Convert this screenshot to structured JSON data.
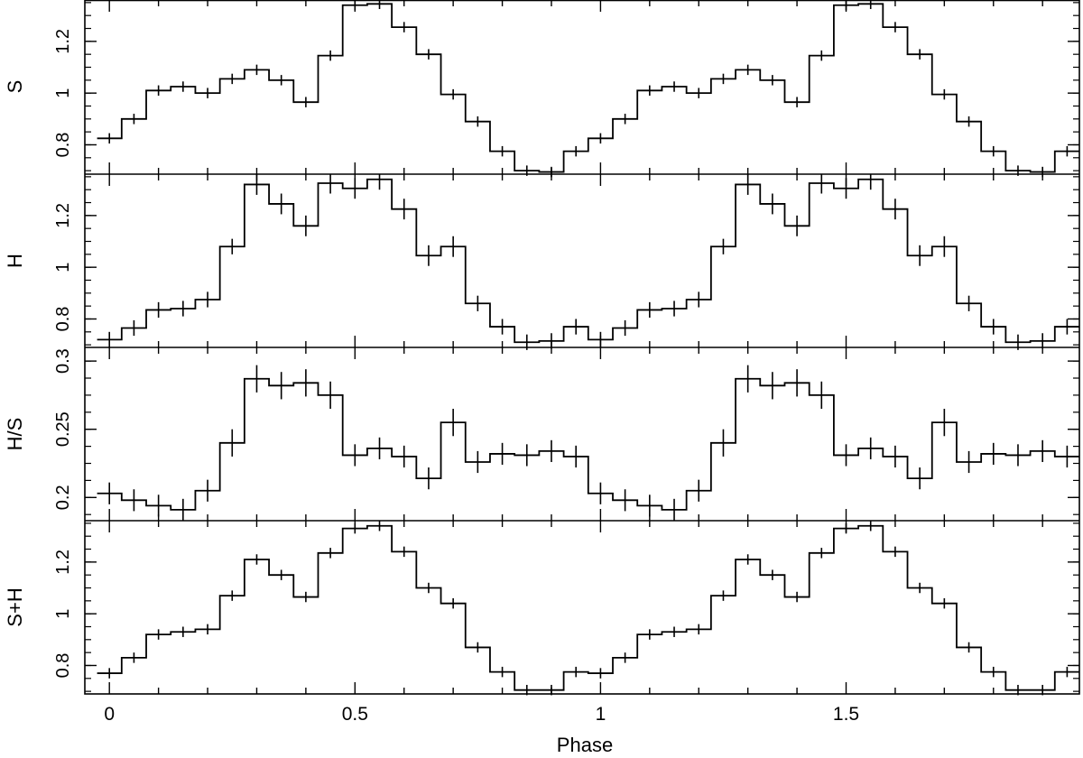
{
  "chart_data": {
    "type": "line",
    "style": "step-histogram with error bars",
    "xlabel": "Phase",
    "xlim": [
      -0.05,
      1.975
    ],
    "xticks": [
      "0",
      "0.5",
      "1",
      "1.5"
    ],
    "bin_width": 0.05,
    "x": [
      0.0,
      0.05,
      0.1,
      0.15,
      0.2,
      0.25,
      0.3,
      0.35,
      0.4,
      0.45,
      0.5,
      0.55,
      0.6,
      0.65,
      0.7,
      0.75,
      0.8,
      0.85,
      0.9,
      0.95,
      1.0,
      1.05,
      1.1,
      1.15,
      1.2,
      1.25,
      1.3,
      1.35,
      1.4,
      1.45,
      1.5,
      1.55,
      1.6,
      1.65,
      1.7,
      1.75,
      1.8,
      1.85,
      1.9,
      1.95
    ],
    "panels": [
      {
        "ylabel": "S",
        "ylim": [
          0.69,
          1.36
        ],
        "yticks": [
          "0.8",
          "1",
          "1.2"
        ],
        "values": [
          0.825,
          0.9,
          1.01,
          1.025,
          1.0,
          1.055,
          1.09,
          1.05,
          0.965,
          1.145,
          1.34,
          1.345,
          1.255,
          1.15,
          0.995,
          0.89,
          0.775,
          0.7,
          0.695,
          0.775,
          0.825,
          0.9,
          1.01,
          1.025,
          1.0,
          1.055,
          1.09,
          1.05,
          0.965,
          1.145,
          1.34,
          1.345,
          1.255,
          1.15,
          0.995,
          0.89,
          0.775,
          0.7,
          0.695,
          0.775
        ],
        "errors": [
          0.02,
          0.02,
          0.02,
          0.02,
          0.02,
          0.02,
          0.02,
          0.02,
          0.02,
          0.02,
          0.02,
          0.02,
          0.02,
          0.02,
          0.02,
          0.02,
          0.02,
          0.02,
          0.02,
          0.02,
          0.02,
          0.02,
          0.02,
          0.02,
          0.02,
          0.02,
          0.02,
          0.02,
          0.02,
          0.02,
          0.02,
          0.02,
          0.02,
          0.02,
          0.02,
          0.02,
          0.02,
          0.02,
          0.02,
          0.02
        ]
      },
      {
        "ylabel": "H",
        "ylim": [
          0.69,
          1.36
        ],
        "yticks": [
          "0.8",
          "1",
          "1.2"
        ],
        "values": [
          0.72,
          0.765,
          0.835,
          0.84,
          0.875,
          1.08,
          1.32,
          1.245,
          1.16,
          1.325,
          1.305,
          1.34,
          1.225,
          1.045,
          1.08,
          0.86,
          0.77,
          0.71,
          0.715,
          0.77,
          0.72,
          0.765,
          0.835,
          0.84,
          0.875,
          1.08,
          1.32,
          1.245,
          1.16,
          1.325,
          1.305,
          1.34,
          1.225,
          1.045,
          1.08,
          0.86,
          0.77,
          0.71,
          0.715,
          0.77
        ],
        "errors": [
          0.03,
          0.03,
          0.03,
          0.03,
          0.03,
          0.03,
          0.04,
          0.04,
          0.04,
          0.04,
          0.04,
          0.04,
          0.04,
          0.04,
          0.04,
          0.03,
          0.03,
          0.03,
          0.03,
          0.03,
          0.03,
          0.03,
          0.03,
          0.03,
          0.03,
          0.03,
          0.04,
          0.04,
          0.04,
          0.04,
          0.04,
          0.04,
          0.04,
          0.04,
          0.04,
          0.03,
          0.03,
          0.03,
          0.03,
          0.03
        ]
      },
      {
        "ylabel": "H/S",
        "ylim": [
          0.183,
          0.31
        ],
        "yticks": [
          "0.2",
          "0.25",
          "0.3"
        ],
        "values": [
          0.203,
          0.198,
          0.194,
          0.191,
          0.205,
          0.24,
          0.287,
          0.282,
          0.284,
          0.275,
          0.231,
          0.236,
          0.23,
          0.214,
          0.255,
          0.226,
          0.232,
          0.231,
          0.234,
          0.23,
          0.203,
          0.198,
          0.194,
          0.191,
          0.205,
          0.24,
          0.287,
          0.282,
          0.284,
          0.275,
          0.231,
          0.236,
          0.23,
          0.214,
          0.255,
          0.226,
          0.232,
          0.231,
          0.234,
          0.23
        ],
        "errors": [
          0.008,
          0.008,
          0.008,
          0.008,
          0.008,
          0.01,
          0.01,
          0.01,
          0.01,
          0.01,
          0.008,
          0.008,
          0.008,
          0.008,
          0.01,
          0.008,
          0.008,
          0.008,
          0.008,
          0.008,
          0.008,
          0.008,
          0.008,
          0.008,
          0.008,
          0.01,
          0.01,
          0.01,
          0.01,
          0.01,
          0.008,
          0.008,
          0.008,
          0.008,
          0.01,
          0.008,
          0.008,
          0.008,
          0.008,
          0.008
        ]
      },
      {
        "ylabel": "S+H",
        "ylim": [
          0.69,
          1.36
        ],
        "yticks": [
          "0.8",
          "1",
          "1.2"
        ],
        "values": [
          0.77,
          0.83,
          0.92,
          0.93,
          0.94,
          1.07,
          1.21,
          1.15,
          1.065,
          1.235,
          1.33,
          1.34,
          1.24,
          1.1,
          1.04,
          0.87,
          0.775,
          0.705,
          0.705,
          0.775,
          0.77,
          0.83,
          0.92,
          0.93,
          0.94,
          1.07,
          1.21,
          1.15,
          1.065,
          1.235,
          1.33,
          1.34,
          1.24,
          1.1,
          1.04,
          0.87,
          0.775,
          0.705,
          0.705,
          0.775
        ],
        "errors": [
          0.02,
          0.02,
          0.02,
          0.02,
          0.02,
          0.02,
          0.02,
          0.02,
          0.02,
          0.02,
          0.02,
          0.02,
          0.02,
          0.02,
          0.02,
          0.02,
          0.02,
          0.02,
          0.02,
          0.02,
          0.02,
          0.02,
          0.02,
          0.02,
          0.02,
          0.02,
          0.02,
          0.02,
          0.02,
          0.02,
          0.02,
          0.02,
          0.02,
          0.02,
          0.02,
          0.02,
          0.02,
          0.02,
          0.02,
          0.02
        ]
      }
    ]
  }
}
